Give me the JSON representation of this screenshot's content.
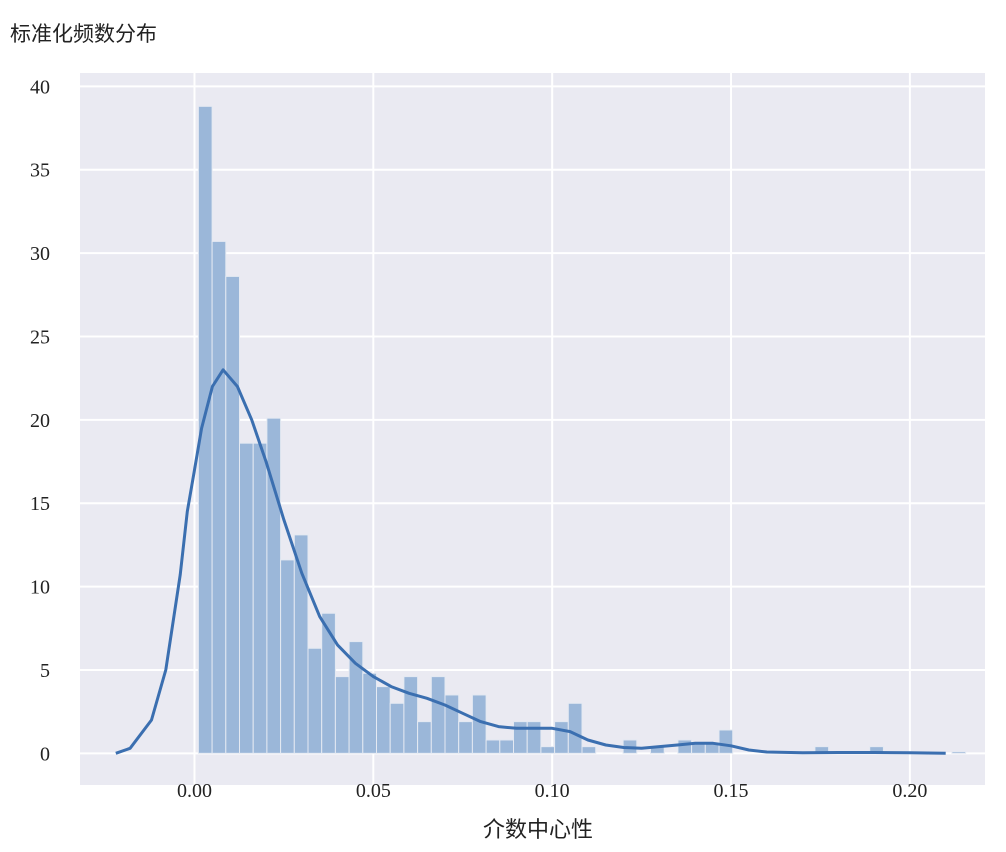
{
  "chart_data": {
    "type": "bar",
    "subtype": "histogram with kde line",
    "title": "",
    "ylabel": "标准化频数分布",
    "xlabel": "介数中心性",
    "xlim": [
      -0.032,
      0.221
    ],
    "ylim": [
      -1.9,
      40.8
    ],
    "grid": true,
    "xticks": [
      "0.00",
      "0.05",
      "0.10",
      "0.15",
      "0.20"
    ],
    "xtick_values": [
      0.0,
      0.05,
      0.1,
      0.15,
      0.2
    ],
    "yticks": [
      "0",
      "5",
      "10",
      "15",
      "20",
      "25",
      "30",
      "35",
      "40"
    ],
    "ytick_values": [
      0,
      5,
      10,
      15,
      20,
      25,
      30,
      35,
      40
    ],
    "bin_start": 0.0011,
    "bin_width": 0.00383,
    "values": [
      38.8,
      30.7,
      28.6,
      18.6,
      18.6,
      20.1,
      11.6,
      13.1,
      6.3,
      8.4,
      4.6,
      6.7,
      4.8,
      4.0,
      3.0,
      4.6,
      1.9,
      4.6,
      3.5,
      1.9,
      3.5,
      0.8,
      0.8,
      1.9,
      1.9,
      0.4,
      1.9,
      3.0,
      0.4,
      0,
      0,
      0.8,
      0,
      0.4,
      0,
      0.8,
      0.6,
      0.6,
      1.4,
      0,
      0,
      0,
      0,
      0,
      0,
      0.4,
      0,
      0,
      0,
      0.4,
      0,
      0,
      0,
      0,
      0,
      0.1
    ],
    "kde": {
      "x": [
        -0.022,
        -0.018,
        -0.012,
        -0.008,
        -0.004,
        -0.002,
        0.0,
        0.002,
        0.005,
        0.008,
        0.012,
        0.016,
        0.02,
        0.025,
        0.03,
        0.035,
        0.04,
        0.045,
        0.05,
        0.055,
        0.06,
        0.065,
        0.07,
        0.075,
        0.08,
        0.085,
        0.09,
        0.095,
        0.1,
        0.105,
        0.11,
        0.115,
        0.12,
        0.125,
        0.13,
        0.135,
        0.14,
        0.145,
        0.15,
        0.155,
        0.16,
        0.17,
        0.18,
        0.19,
        0.2,
        0.21
      ],
      "y": [
        0,
        0.3,
        2,
        5,
        10.7,
        14.5,
        17,
        19.5,
        22,
        23,
        22,
        20,
        17.5,
        14,
        10.8,
        8.2,
        6.5,
        5.4,
        4.6,
        4.0,
        3.6,
        3.3,
        2.9,
        2.4,
        1.9,
        1.6,
        1.5,
        1.5,
        1.5,
        1.3,
        0.8,
        0.5,
        0.35,
        0.3,
        0.4,
        0.5,
        0.6,
        0.6,
        0.45,
        0.2,
        0.08,
        0.03,
        0.05,
        0.05,
        0.03,
        0.01
      ]
    },
    "colors": {
      "background": "#eaeaf2",
      "grid": "#ffffff",
      "bar": "#9bb7d9",
      "line": "#3b6fb0"
    }
  }
}
